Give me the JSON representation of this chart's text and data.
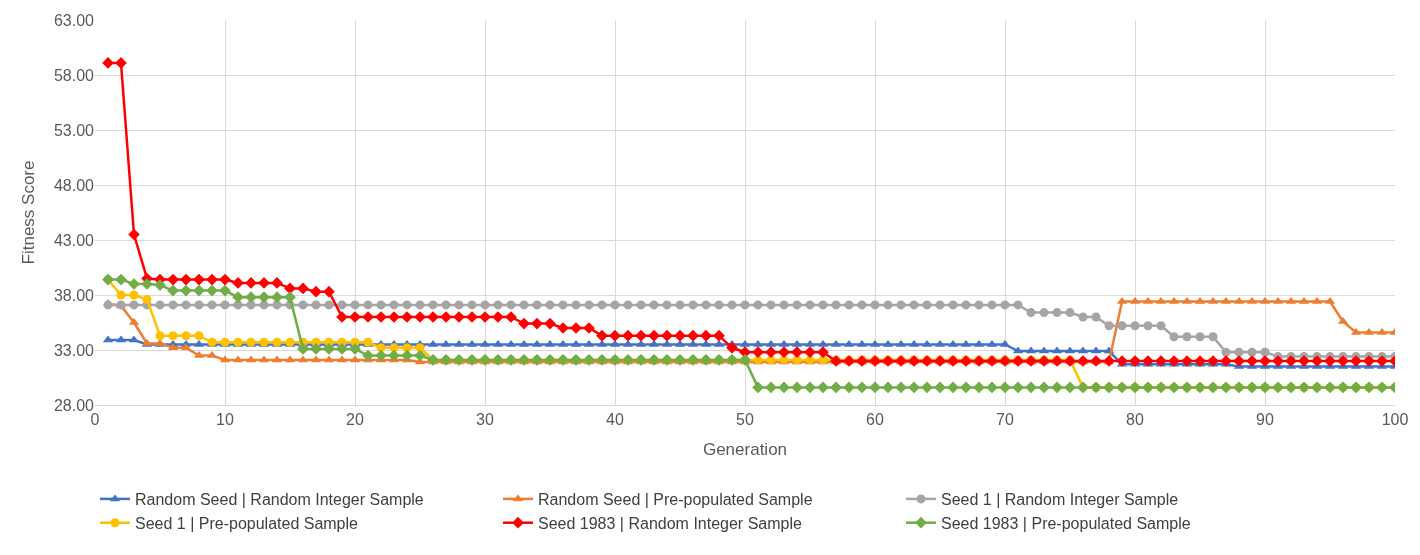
{
  "chart_data": {
    "type": "line",
    "xlabel": "Generation",
    "ylabel": "Fitness Score",
    "x": [
      1,
      2,
      3,
      4,
      5,
      6,
      7,
      8,
      9,
      10,
      11,
      12,
      13,
      14,
      15,
      16,
      17,
      18,
      19,
      20,
      21,
      22,
      23,
      24,
      25,
      26,
      27,
      28,
      29,
      30,
      31,
      32,
      33,
      34,
      35,
      36,
      37,
      38,
      39,
      40,
      41,
      42,
      43,
      44,
      45,
      46,
      47,
      48,
      49,
      50,
      51,
      52,
      53,
      54,
      55,
      56,
      57,
      58,
      59,
      60,
      61,
      62,
      63,
      64,
      65,
      66,
      67,
      68,
      69,
      70,
      71,
      72,
      73,
      74,
      75,
      76,
      77,
      78,
      79,
      80,
      81,
      82,
      83,
      84,
      85,
      86,
      87,
      88,
      89,
      90,
      91,
      92,
      93,
      94,
      95,
      96,
      97,
      98,
      99,
      100
    ],
    "xlim": [
      0,
      100
    ],
    "xticks": [
      0,
      10,
      20,
      30,
      40,
      50,
      60,
      70,
      80,
      90,
      100
    ],
    "ylim": [
      28,
      63
    ],
    "yticks": [
      {
        "value": 28,
        "label": "28.00"
      },
      {
        "value": 33,
        "label": "33.00"
      },
      {
        "value": 38,
        "label": "38.00"
      },
      {
        "value": 43,
        "label": "43.00"
      },
      {
        "value": 48,
        "label": "48.00"
      },
      {
        "value": 53,
        "label": "53.00"
      },
      {
        "value": 58,
        "label": "58.00"
      },
      {
        "value": 63,
        "label": "63.00"
      }
    ],
    "grid": true,
    "legend": "bottom",
    "line_style": "solid",
    "series": [
      {
        "name": "Random Seed | Random Integer Sample",
        "color": "#4472c4",
        "marker": "triangle",
        "values": [
          33.9,
          33.9,
          33.9,
          33.5,
          33.5,
          33.5,
          33.5,
          33.5,
          33.5,
          33.5,
          33.5,
          33.5,
          33.5,
          33.5,
          33.5,
          33.5,
          33.5,
          33.5,
          33.5,
          33.5,
          33.5,
          33.5,
          33.5,
          33.5,
          33.5,
          33.5,
          33.5,
          33.5,
          33.5,
          33.5,
          33.5,
          33.5,
          33.5,
          33.5,
          33.5,
          33.5,
          33.5,
          33.5,
          33.5,
          33.5,
          33.5,
          33.5,
          33.5,
          33.5,
          33.5,
          33.5,
          33.5,
          33.5,
          33.5,
          33.5,
          33.5,
          33.5,
          33.5,
          33.5,
          33.5,
          33.5,
          33.5,
          33.5,
          33.5,
          33.5,
          33.5,
          33.5,
          33.5,
          33.5,
          33.5,
          33.5,
          33.5,
          33.5,
          33.5,
          33.5,
          32.9,
          32.9,
          32.9,
          32.9,
          32.9,
          32.9,
          32.9,
          32.9,
          31.7,
          31.7,
          31.7,
          31.7,
          31.7,
          31.7,
          31.7,
          31.7,
          31.7,
          31.5,
          31.5,
          31.5,
          31.5,
          31.5,
          31.5,
          31.5,
          31.5,
          31.5,
          31.5,
          31.5,
          31.5,
          31.5
        ]
      },
      {
        "name": "Random Seed | Pre-populated Sample",
        "color": "#ed7d31",
        "marker": "triangle",
        "values": [
          37.2,
          37.0,
          35.5,
          33.6,
          33.6,
          33.2,
          33.2,
          32.5,
          32.5,
          32.1,
          32.1,
          32.1,
          32.1,
          32.1,
          32.1,
          32.1,
          32.1,
          32.1,
          32.1,
          32.1,
          32.1,
          32.1,
          32.1,
          32.1,
          31.9,
          31.9,
          31.9,
          31.9,
          31.9,
          31.9,
          31.9,
          31.9,
          31.9,
          31.9,
          31.9,
          31.9,
          31.9,
          31.9,
          31.9,
          31.9,
          31.9,
          31.9,
          31.9,
          31.9,
          31.9,
          31.9,
          31.9,
          31.9,
          31.9,
          31.9,
          31.9,
          31.9,
          31.9,
          31.9,
          31.9,
          31.9,
          31.9,
          31.9,
          31.9,
          31.9,
          31.9,
          31.9,
          31.9,
          31.9,
          31.9,
          31.9,
          31.9,
          31.9,
          31.9,
          31.9,
          31.9,
          31.9,
          31.9,
          31.9,
          31.9,
          31.9,
          31.9,
          31.9,
          37.4,
          37.4,
          37.4,
          37.4,
          37.4,
          37.4,
          37.4,
          37.4,
          37.4,
          37.4,
          37.4,
          37.4,
          37.4,
          37.4,
          37.4,
          37.4,
          37.4,
          35.6,
          34.6,
          34.6,
          34.6,
          34.6
        ]
      },
      {
        "name": "Seed 1 | Random Integer Sample",
        "color": "#a5a5a5",
        "marker": "circle",
        "values": [
          37.1,
          37.1,
          37.1,
          37.1,
          37.1,
          37.1,
          37.1,
          37.1,
          37.1,
          37.1,
          37.1,
          37.1,
          37.1,
          37.1,
          37.1,
          37.1,
          37.1,
          37.1,
          37.1,
          37.1,
          37.1,
          37.1,
          37.1,
          37.1,
          37.1,
          37.1,
          37.1,
          37.1,
          37.1,
          37.1,
          37.1,
          37.1,
          37.1,
          37.1,
          37.1,
          37.1,
          37.1,
          37.1,
          37.1,
          37.1,
          37.1,
          37.1,
          37.1,
          37.1,
          37.1,
          37.1,
          37.1,
          37.1,
          37.1,
          37.1,
          37.1,
          37.1,
          37.1,
          37.1,
          37.1,
          37.1,
          37.1,
          37.1,
          37.1,
          37.1,
          37.1,
          37.1,
          37.1,
          37.1,
          37.1,
          37.1,
          37.1,
          37.1,
          37.1,
          37.1,
          37.1,
          36.4,
          36.4,
          36.4,
          36.4,
          36.0,
          36.0,
          35.2,
          35.2,
          35.2,
          35.2,
          35.2,
          34.2,
          34.2,
          34.2,
          34.2,
          32.8,
          32.8,
          32.8,
          32.8,
          32.4,
          32.4,
          32.4,
          32.4,
          32.4,
          32.4,
          32.4,
          32.4,
          32.4,
          32.4
        ]
      },
      {
        "name": "Seed 1 | Pre-populated Sample",
        "color": "#ffc000",
        "marker": "circle",
        "values": [
          39.4,
          38.0,
          38.0,
          37.6,
          34.3,
          34.3,
          34.3,
          34.3,
          33.7,
          33.7,
          33.7,
          33.7,
          33.7,
          33.7,
          33.7,
          33.7,
          33.7,
          33.7,
          33.7,
          33.7,
          33.7,
          33.2,
          33.2,
          33.2,
          33.2,
          32.1,
          32.1,
          32.1,
          32.1,
          32.1,
          32.1,
          32.1,
          32.1,
          32.1,
          32.1,
          32.1,
          32.1,
          32.1,
          32.1,
          32.1,
          32.1,
          32.1,
          32.1,
          32.1,
          32.1,
          32.1,
          32.1,
          32.1,
          32.1,
          32.1,
          32.1,
          32.1,
          32.1,
          32.1,
          32.1,
          32.1,
          32.1,
          32.1,
          32.1,
          32.1,
          32.1,
          32.1,
          32.1,
          32.1,
          32.1,
          32.1,
          32.1,
          32.1,
          32.1,
          32.1,
          32.1,
          32.1,
          32.1,
          32.1,
          32.1,
          29.6,
          29.6,
          29.6,
          29.6,
          29.6,
          29.6,
          29.6,
          29.6,
          29.6,
          29.6,
          29.6,
          29.6,
          29.6,
          29.6,
          29.6,
          29.6,
          29.6,
          29.6,
          29.6,
          29.6,
          29.6,
          29.6,
          29.6,
          29.6,
          29.6
        ]
      },
      {
        "name": "Seed 1983 | Random Integer Sample",
        "color": "#ff0000",
        "marker": "diamond",
        "values": [
          59.1,
          59.1,
          43.5,
          39.5,
          39.4,
          39.4,
          39.4,
          39.4,
          39.4,
          39.4,
          39.1,
          39.1,
          39.1,
          39.1,
          38.6,
          38.6,
          38.3,
          38.3,
          36.0,
          36.0,
          36.0,
          36.0,
          36.0,
          36.0,
          36.0,
          36.0,
          36.0,
          36.0,
          36.0,
          36.0,
          36.0,
          36.0,
          35.4,
          35.4,
          35.4,
          35.0,
          35.0,
          35.0,
          34.3,
          34.3,
          34.3,
          34.3,
          34.3,
          34.3,
          34.3,
          34.3,
          34.3,
          34.3,
          33.2,
          32.8,
          32.8,
          32.8,
          32.8,
          32.8,
          32.8,
          32.8,
          32.0,
          32.0,
          32.0,
          32.0,
          32.0,
          32.0,
          32.0,
          32.0,
          32.0,
          32.0,
          32.0,
          32.0,
          32.0,
          32.0,
          32.0,
          32.0,
          32.0,
          32.0,
          32.0,
          32.0,
          32.0,
          32.0,
          32.0,
          32.0,
          32.0,
          32.0,
          32.0,
          32.0,
          32.0,
          32.0,
          32.0,
          32.0,
          32.0,
          32.0,
          32.0,
          32.0,
          32.0,
          32.0,
          32.0,
          32.0,
          32.0,
          32.0,
          32.0,
          32.0
        ]
      },
      {
        "name": "Seed 1983 | Pre-populated Sample",
        "color": "#70ad47",
        "marker": "diamond",
        "values": [
          39.4,
          39.4,
          39.0,
          39.0,
          38.9,
          38.4,
          38.4,
          38.4,
          38.4,
          38.4,
          37.8,
          37.8,
          37.8,
          37.8,
          37.8,
          33.1,
          33.1,
          33.1,
          33.1,
          33.1,
          32.5,
          32.5,
          32.5,
          32.5,
          32.5,
          32.1,
          32.1,
          32.1,
          32.1,
          32.1,
          32.1,
          32.1,
          32.1,
          32.1,
          32.1,
          32.1,
          32.1,
          32.1,
          32.1,
          32.1,
          32.1,
          32.1,
          32.1,
          32.1,
          32.1,
          32.1,
          32.1,
          32.1,
          32.1,
          32.1,
          29.6,
          29.6,
          29.6,
          29.6,
          29.6,
          29.6,
          29.6,
          29.6,
          29.6,
          29.6,
          29.6,
          29.6,
          29.6,
          29.6,
          29.6,
          29.6,
          29.6,
          29.6,
          29.6,
          29.6,
          29.6,
          29.6,
          29.6,
          29.6,
          29.6,
          29.6,
          29.6,
          29.6,
          29.6,
          29.6,
          29.6,
          29.6,
          29.6,
          29.6,
          29.6,
          29.6,
          29.6,
          29.6,
          29.6,
          29.6,
          29.6,
          29.6,
          29.6,
          29.6,
          29.6,
          29.6,
          29.6,
          29.6,
          29.6,
          29.6
        ]
      }
    ]
  }
}
